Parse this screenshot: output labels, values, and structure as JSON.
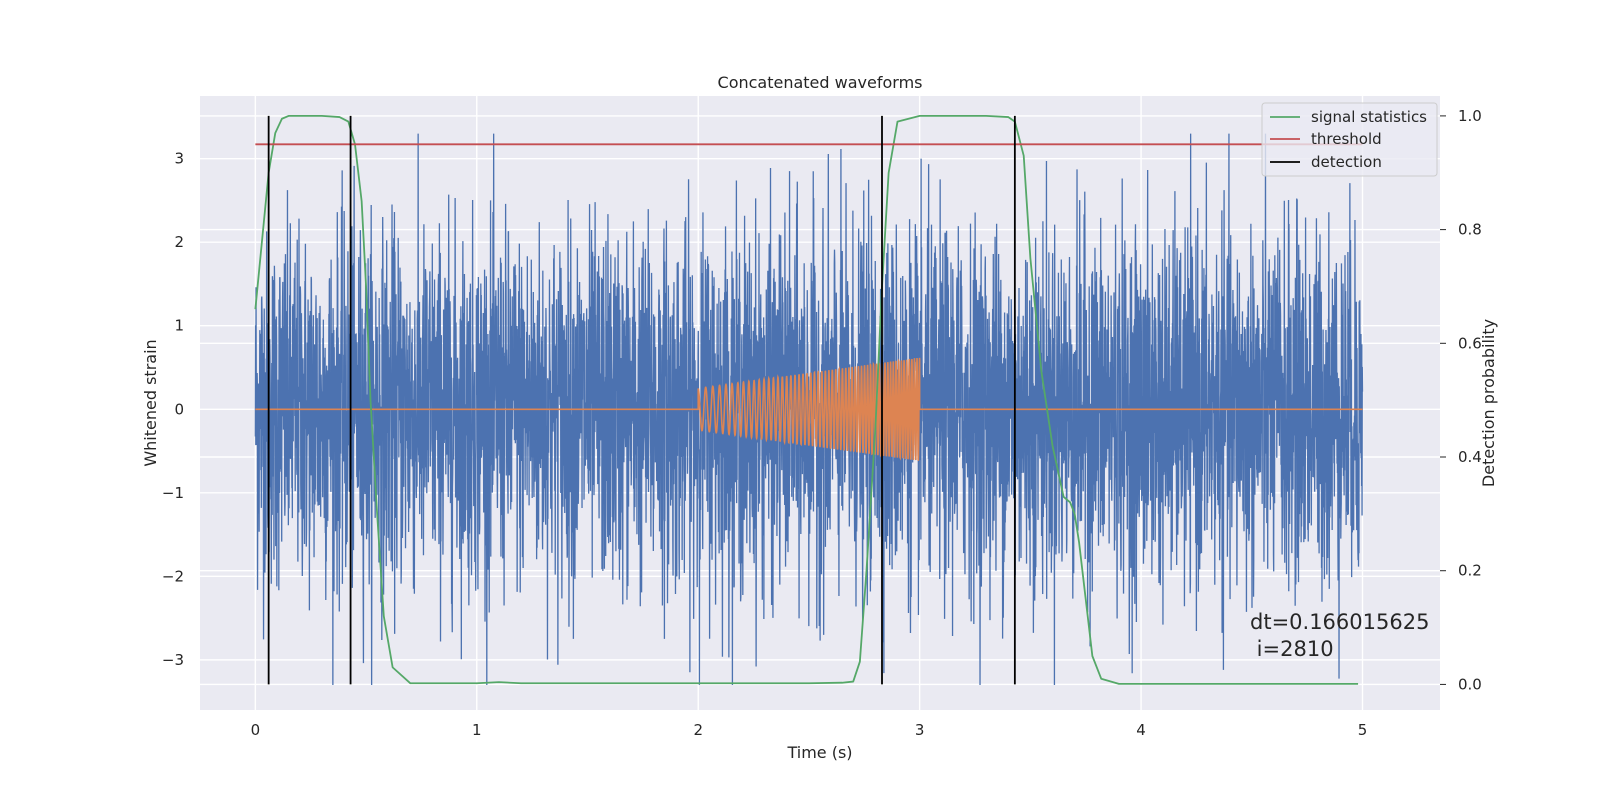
{
  "chart_data": {
    "type": "line",
    "title": "Concatenated waveforms",
    "xlabel": "Time (s)",
    "ylabel": "Whitened strain",
    "y2label": "Detection probability",
    "xlim": [
      -0.25,
      5.35
    ],
    "ylim": [
      -3.6,
      3.75
    ],
    "y2lim": [
      -0.045,
      1.035
    ],
    "xticks": [
      0,
      1,
      2,
      3,
      4,
      5
    ],
    "xtick_labels": [
      "0",
      "1",
      "2",
      "3",
      "4",
      "5"
    ],
    "yticks": [
      -3,
      -2,
      -1,
      0,
      1,
      2,
      3
    ],
    "ytick_labels": [
      "−3",
      "−2",
      "−1",
      "0",
      "1",
      "2",
      "3"
    ],
    "y2ticks": [
      0.0,
      0.2,
      0.4,
      0.6,
      0.8,
      1.0
    ],
    "y2tick_labels": [
      "0.0",
      "0.2",
      "0.4",
      "0.6",
      "0.8",
      "1.0"
    ],
    "grid": true,
    "legend_position": "top-right",
    "background": "#eaeaf2",
    "series": [
      {
        "name": "strain",
        "axis": "left",
        "color": "#4c72b0",
        "kind": "noise",
        "x_range": [
          0,
          5
        ],
        "envelope": 3.3
      },
      {
        "name": "injected chirp",
        "axis": "left",
        "color": "#dd8452",
        "kind": "chirp",
        "x_range": [
          0,
          5
        ],
        "chirp_start": 2.0,
        "chirp_end": 3.0,
        "amplitude_start": 0.25,
        "amplitude_end": 0.62
      },
      {
        "name": "signal statistics",
        "axis": "right",
        "color": "#55a868",
        "x": [
          0.0,
          0.03,
          0.06,
          0.09,
          0.12,
          0.15,
          0.2,
          0.3,
          0.38,
          0.42,
          0.45,
          0.48,
          0.5,
          0.52,
          0.55,
          0.58,
          0.62,
          0.7,
          1.0,
          1.1,
          1.2,
          1.5,
          2.0,
          2.5,
          2.65,
          2.7,
          2.73,
          2.76,
          2.8,
          2.83,
          2.86,
          2.9,
          3.0,
          3.3,
          3.4,
          3.43,
          3.47,
          3.5,
          3.55,
          3.6,
          3.65,
          3.68,
          3.7,
          3.72,
          3.75,
          3.78,
          3.82,
          3.9,
          4.5,
          4.98
        ],
        "values": [
          0.66,
          0.78,
          0.9,
          0.97,
          0.995,
          1.0,
          1.0,
          1.0,
          0.998,
          0.99,
          0.95,
          0.85,
          0.7,
          0.5,
          0.3,
          0.12,
          0.03,
          0.002,
          0.002,
          0.004,
          0.002,
          0.002,
          0.002,
          0.002,
          0.003,
          0.005,
          0.04,
          0.2,
          0.45,
          0.7,
          0.9,
          0.99,
          1.0,
          1.0,
          0.998,
          0.99,
          0.93,
          0.75,
          0.55,
          0.42,
          0.33,
          0.32,
          0.3,
          0.25,
          0.15,
          0.05,
          0.01,
          0.001,
          0.001,
          0.001
        ]
      },
      {
        "name": "threshold",
        "axis": "right",
        "color": "#c44e52",
        "x": [
          0,
          5
        ],
        "values": [
          0.95,
          0.95
        ]
      },
      {
        "name": "detection",
        "axis": "right",
        "color": "#000000",
        "kind": "vlines",
        "x": [
          0.06,
          0.43,
          2.83,
          3.43
        ],
        "y_range": [
          0.0,
          1.0
        ]
      }
    ],
    "legend": [
      "signal statistics",
      "threshold",
      "detection"
    ],
    "annotations": [
      "dt=0.166015625",
      " i=2810"
    ]
  }
}
